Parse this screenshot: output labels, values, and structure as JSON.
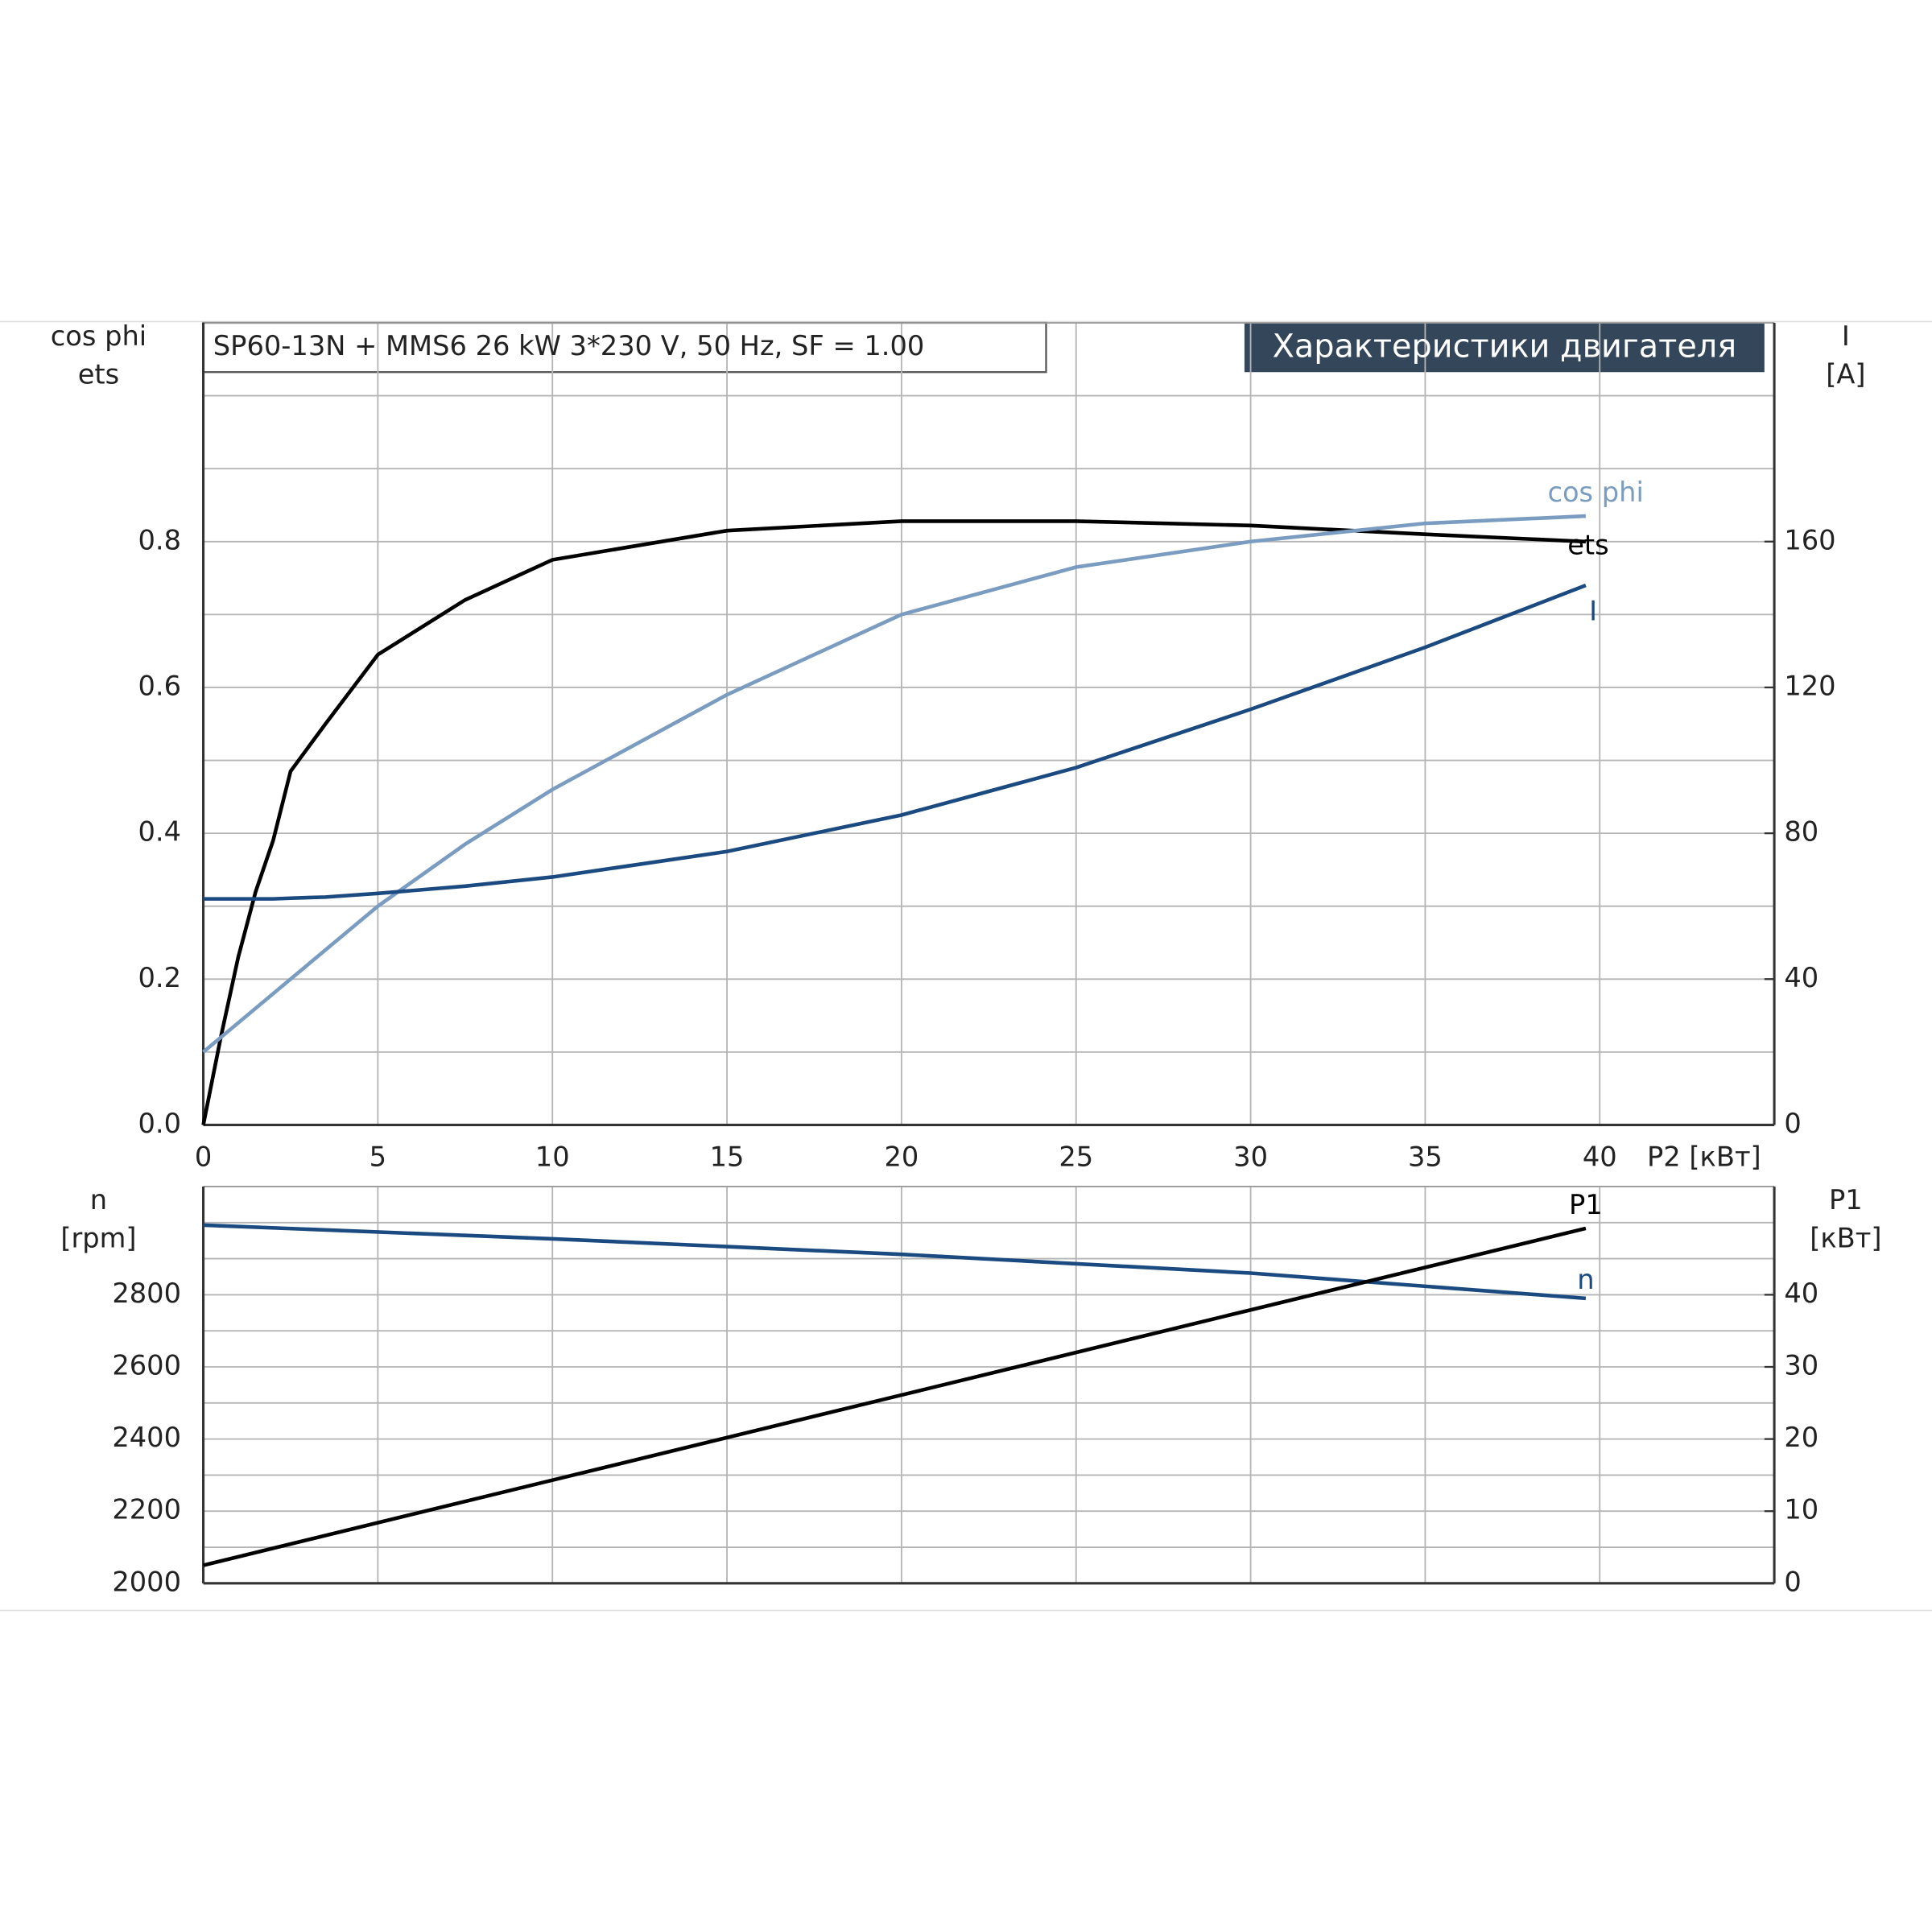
{
  "chart_data": [
    {
      "type": "line",
      "header": "SP60-13N + MMS6   26 kW   3*230 V, 50 Hz, SF = 1.00",
      "title": "Характеристики двигателя",
      "y_label_lines": [
        "cos phi",
        "ets"
      ],
      "y2_label_lines": [
        "I",
        "[A]"
      ],
      "xlabel": "P2 [кВт]",
      "x": [
        0,
        0.5,
        1,
        1.5,
        2,
        2.5,
        3.5,
        5,
        7.5,
        10,
        15,
        20,
        25,
        30,
        35,
        39.6
      ],
      "xlim": [
        0,
        45
      ],
      "xticks": [
        0,
        5,
        10,
        15,
        20,
        25,
        30,
        35,
        40
      ],
      "ylim": [
        0,
        1.1
      ],
      "yticks": [
        {
          "value": 0,
          "label": "0.0"
        },
        0.2,
        0.4,
        0.6,
        0.8
      ],
      "y_minor_grid": [
        0.1,
        0.3,
        0.5,
        0.7,
        0.9,
        1.0
      ],
      "y2lim": [
        0,
        220
      ],
      "y2ticks": [
        0,
        40,
        80,
        120,
        160
      ],
      "grid": true,
      "series": [
        {
          "name": "ets",
          "color": "#000000",
          "values": [
            0,
            0.12,
            0.23,
            0.32,
            0.39,
            0.485,
            0.55,
            0.645,
            0.72,
            0.775,
            0.815,
            0.828,
            0.828,
            0.822,
            0.81,
            0.8
          ]
        },
        {
          "name": "cos phi",
          "color": "#7a9cc0",
          "values": [
            0.1,
            0.12,
            0.14,
            0.16,
            0.18,
            0.2,
            0.24,
            0.3,
            0.385,
            0.46,
            0.59,
            0.7,
            0.765,
            0.8,
            0.825,
            0.835
          ]
        },
        {
          "name": "I",
          "color": "#1a4a80",
          "axis": "y2",
          "values": [
            62,
            62,
            62,
            62,
            62,
            62.2,
            62.5,
            63.5,
            65.5,
            68,
            75,
            85,
            98,
            114,
            131,
            148
          ]
        }
      ]
    },
    {
      "type": "line",
      "y_label_lines": [
        "n",
        "[rpm]"
      ],
      "y2_label_lines": [
        "P1",
        "[кВт]"
      ],
      "x": [
        0,
        10,
        20,
        30,
        39.6
      ],
      "xlim": [
        0,
        45
      ],
      "x_grid": [
        5,
        10,
        15,
        20,
        25,
        30,
        35,
        40
      ],
      "ylim": [
        2000,
        3100
      ],
      "yticks": [
        2000,
        2200,
        2400,
        2600,
        2800
      ],
      "y_minor_grid": [
        2100,
        2300,
        2500,
        2700,
        2900,
        3000
      ],
      "y2lim": [
        0,
        55
      ],
      "y2ticks": [
        0,
        10,
        20,
        30,
        40
      ],
      "grid": true,
      "series": [
        {
          "name": "n",
          "color": "#1a4a80",
          "values": [
            2993,
            2955,
            2912,
            2860,
            2790
          ]
        },
        {
          "name": "P1",
          "color": "#000000",
          "axis": "y2",
          "values": [
            2.5,
            14.3,
            26.1,
            37.9,
            49.2
          ]
        }
      ]
    }
  ]
}
